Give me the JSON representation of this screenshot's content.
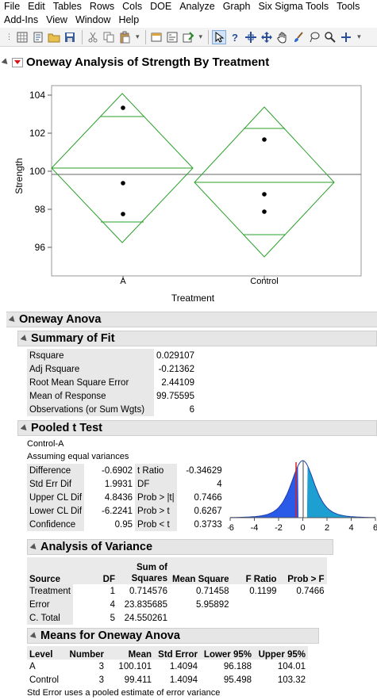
{
  "menu": {
    "row1": [
      "File",
      "Edit",
      "Tables",
      "Rows",
      "Cols",
      "DOE",
      "Analyze",
      "Graph",
      "Six Sigma Tools",
      "Tools"
    ],
    "row2": [
      "Add-Ins",
      "View",
      "Window",
      "Help"
    ]
  },
  "report": {
    "title": "Oneway Analysis of Strength By Treatment",
    "plot": {
      "ylabel": "Strength",
      "xlabel": "Treatment",
      "yticks": [
        "104",
        "102",
        "100",
        "98",
        "96"
      ],
      "xticks": [
        "A",
        "Control"
      ]
    },
    "anova_title": "Oneway Anova",
    "summary_of_fit": {
      "title": "Summary of Fit",
      "rows": [
        {
          "label": "Rsquare",
          "value": "0.029107"
        },
        {
          "label": "Adj Rsquare",
          "value": "-0.21362"
        },
        {
          "label": "Root Mean Square Error",
          "value": "2.44109"
        },
        {
          "label": "Mean of Response",
          "value": "99.75595"
        },
        {
          "label": "Observations (or Sum Wgts)",
          "value": "6"
        }
      ]
    },
    "pooled_t": {
      "title": "Pooled t Test",
      "line1": "Control-A",
      "line2": "Assuming equal variances",
      "rows": [
        {
          "l1": "Difference",
          "v1": "-0.6902",
          "l2": "t Ratio",
          "v2": "-0.34629"
        },
        {
          "l1": "Std Err Dif",
          "v1": "1.9931",
          "l2": "DF",
          "v2": "4"
        },
        {
          "l1": "Upper CL Dif",
          "v1": "4.8436",
          "l2": "Prob > |t|",
          "v2": "0.7466"
        },
        {
          "l1": "Lower CL Dif",
          "v1": "-6.2241",
          "l2": "Prob > t",
          "v2": "0.6267"
        },
        {
          "l1": "Confidence",
          "v1": "0.95",
          "l2": "Prob < t",
          "v2": "0.3733"
        }
      ],
      "dist_ticks": [
        "-6",
        "-4",
        "-2",
        "0",
        "2",
        "4",
        "6"
      ]
    },
    "aov": {
      "title": "Analysis of Variance",
      "headers": {
        "source": "Source",
        "df": "DF",
        "ss1": "Sum of",
        "ss2": "Squares",
        "ms": "Mean Square",
        "f": "F Ratio",
        "p": "Prob > F"
      },
      "rows": [
        {
          "source": "Treatment",
          "df": "1",
          "ss": "0.714576",
          "ms": "0.71458",
          "f": "0.1199",
          "p": "0.7466"
        },
        {
          "source": "Error",
          "df": "4",
          "ss": "23.835685",
          "ms": "5.95892",
          "f": "",
          "p": ""
        },
        {
          "source": "C. Total",
          "df": "5",
          "ss": "24.550261",
          "ms": "",
          "f": "",
          "p": ""
        }
      ]
    },
    "means": {
      "title": "Means for Oneway Anova",
      "headers": {
        "level": "Level",
        "number": "Number",
        "mean": "Mean",
        "se": "Std Error",
        "lower": "Lower 95%",
        "upper": "Upper 95%"
      },
      "rows": [
        {
          "level": "A",
          "number": "3",
          "mean": "100.101",
          "se": "1.4094",
          "lower": "96.188",
          "upper": "104.01"
        },
        {
          "level": "Control",
          "number": "3",
          "mean": "99.411",
          "se": "1.4094",
          "lower": "95.498",
          "upper": "103.32"
        }
      ],
      "footnote": "Std Error uses a pooled estimate of error variance"
    }
  }
}
